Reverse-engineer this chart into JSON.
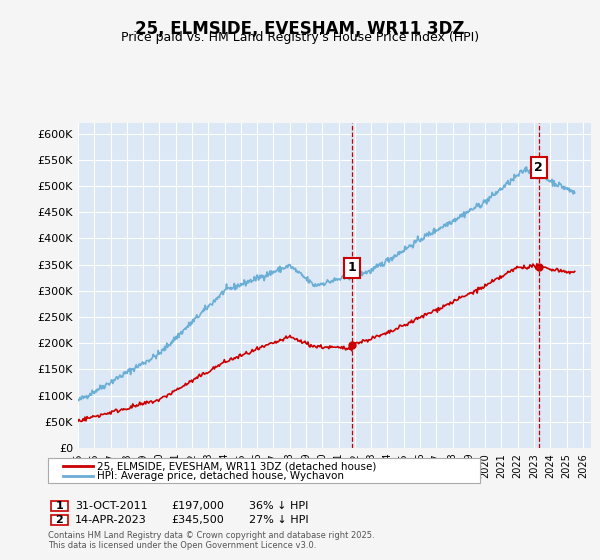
{
  "title": "25, ELMSIDE, EVESHAM, WR11 3DZ",
  "subtitle": "Price paid vs. HM Land Registry's House Price Index (HPI)",
  "xlabel": "",
  "ylabel": "",
  "ylim": [
    0,
    620000
  ],
  "yticks": [
    0,
    50000,
    100000,
    150000,
    200000,
    250000,
    300000,
    350000,
    400000,
    450000,
    500000,
    550000,
    600000
  ],
  "ytick_labels": [
    "£0",
    "£50K",
    "£100K",
    "£150K",
    "£200K",
    "£250K",
    "£300K",
    "£350K",
    "£400K",
    "£450K",
    "£500K",
    "£550K",
    "£600K"
  ],
  "xlim_start": 1995.0,
  "xlim_end": 2026.5,
  "hpi_color": "#6baed6",
  "price_color": "#cc0000",
  "vline1_x": 2011.83,
  "vline2_x": 2023.29,
  "vline_color": "#cc0000",
  "marker1_label": "1",
  "marker2_label": "2",
  "sale1_date": "31-OCT-2011",
  "sale1_price": "£197,000",
  "sale1_hpi": "36% ↓ HPI",
  "sale2_date": "14-APR-2023",
  "sale2_price": "£345,500",
  "sale2_hpi": "27% ↓ HPI",
  "legend_label_red": "25, ELMSIDE, EVESHAM, WR11 3DZ (detached house)",
  "legend_label_blue": "HPI: Average price, detached house, Wychavon",
  "footer": "Contains HM Land Registry data © Crown copyright and database right 2025.\nThis data is licensed under the Open Government Licence v3.0.",
  "bg_color": "#e8f0f8",
  "plot_bg_color": "#dce8f5"
}
